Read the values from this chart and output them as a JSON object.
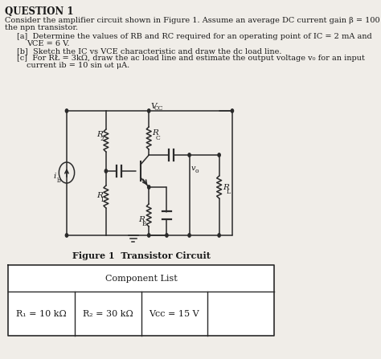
{
  "title": "QUESTION 1",
  "bg_color": "#f0ede8",
  "text_color": "#1a1a1a",
  "figure_caption": "Figure 1  Transistor Circuit",
  "table_header": "Component List",
  "table_cells": [
    "R₁ = 10 kΩ",
    "R₂ = 30 kΩ",
    "Vcc = 15 V"
  ],
  "line_color": "#2a2a2a"
}
